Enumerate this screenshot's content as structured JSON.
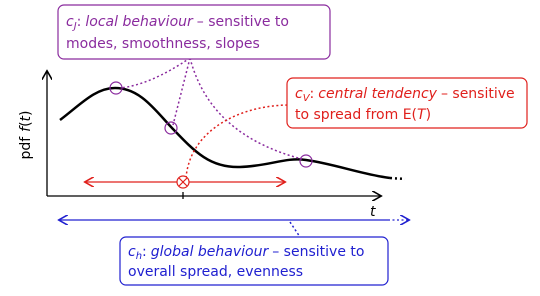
{
  "y_axis_label": {
    "prefix": "pdf",
    "func": "f",
    "open": "(",
    "arg": "t",
    "close": ")"
  },
  "x_axis_label": "t",
  "annotations": [
    {
      "symbol": "c",
      "subscript": "J",
      "separator": ":",
      "name": "local behaviour",
      "rest": "– sensitive to",
      "line2": "modes, smoothness, slopes"
    },
    {
      "symbol": "c",
      "subscript": "V",
      "separator": ":",
      "name": "central tendency",
      "rest": "– sensitive",
      "line2": "to spread from E(",
      "line2_var": "T",
      "line2_end": ")"
    },
    {
      "symbol": "c",
      "subscript": "h",
      "separator": ":",
      "name": "global behaviour",
      "rest": "– sensitive to",
      "line2": "overall spread, evenness"
    }
  ]
}
